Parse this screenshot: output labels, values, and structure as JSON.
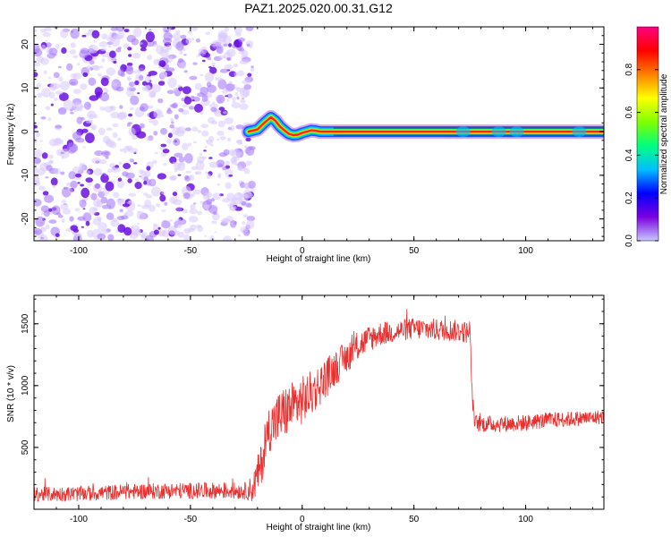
{
  "title": "PAZ1.2025.020.00.31.G12",
  "colors": {
    "snr_line": "#e8302f",
    "core_line": "#333333",
    "noise": "#7b2de0"
  },
  "chart_data": [
    {
      "type": "heatmap",
      "xlabel": "Height of straight line (km)",
      "ylabel": "Frequency (Hz)",
      "xlim": [
        -120,
        135
      ],
      "ylim": [
        -25,
        24
      ],
      "xticks": [
        -100,
        -50,
        0,
        50,
        100
      ],
      "yticks": [
        -20,
        -10,
        0,
        10,
        20
      ],
      "tick_labels_x": [
        "-100",
        "-50",
        "0",
        "50",
        "100"
      ],
      "tick_labels_y": [
        "-20",
        "-10",
        "0",
        "10",
        "20"
      ],
      "noise_region": [
        -120,
        -22
      ],
      "ridge": {
        "x": [
          -24,
          -20,
          -17,
          -14,
          -12,
          -10,
          -8,
          -6,
          -4,
          -2,
          0,
          2,
          4,
          6,
          8,
          10,
          12,
          14,
          135
        ],
        "y": [
          0,
          0.5,
          2,
          3.3,
          2.5,
          1.2,
          0.3,
          -0.5,
          -0.8,
          -0.7,
          -0.3,
          0,
          0.3,
          0.2,
          0,
          0,
          0,
          0,
          0
        ]
      },
      "colorbar": {
        "label": "Normalized spectral amplitude",
        "range": [
          0,
          1
        ],
        "ticks": [
          0.0,
          0.2,
          0.4,
          0.6,
          0.8
        ],
        "tick_labels": [
          "0.0",
          "0.2",
          "0.4",
          "0.6",
          "0.8"
        ],
        "colors": [
          "#c8c8ff",
          "#7a00e0",
          "#0000ff",
          "#00c0ff",
          "#00ff80",
          "#80ff00",
          "#ffff00",
          "#ff8000",
          "#ff0000",
          "#ff0080"
        ]
      }
    },
    {
      "type": "line",
      "xlabel": "Height of straight line (km)",
      "ylabel": "SNR (10 * v/v)",
      "xlim": [
        -120,
        135
      ],
      "ylim": [
        0,
        1730
      ],
      "xticks": [
        -100,
        -50,
        0,
        50,
        100
      ],
      "yticks": [
        500,
        1000,
        1500
      ],
      "tick_labels_x": [
        "-100",
        "-50",
        "0",
        "50",
        "100"
      ],
      "tick_labels_y": [
        "500",
        "1000",
        "1500"
      ],
      "envelope": {
        "x": [
          -120,
          -100,
          -80,
          -60,
          -40,
          -25,
          -22,
          -18,
          -15,
          -10,
          -5,
          0,
          5,
          10,
          15,
          20,
          25,
          30,
          35,
          40,
          45,
          50,
          55,
          60,
          65,
          70,
          75,
          76,
          77,
          80,
          90,
          100,
          110,
          120,
          130,
          135
        ],
        "y": [
          120,
          125,
          140,
          150,
          150,
          150,
          170,
          380,
          650,
          750,
          820,
          880,
          950,
          1050,
          1150,
          1230,
          1320,
          1380,
          1420,
          1430,
          1450,
          1460,
          1460,
          1450,
          1450,
          1440,
          1430,
          950,
          700,
          690,
          690,
          700,
          720,
          730,
          740,
          750
        ]
      },
      "noise_amplitude": {
        "x": [
          -120,
          -25,
          -20,
          -10,
          0,
          20,
          40,
          75,
          77,
          135
        ],
        "y": [
          60,
          70,
          160,
          220,
          200,
          130,
          90,
          90,
          70,
          60
        ]
      }
    }
  ]
}
